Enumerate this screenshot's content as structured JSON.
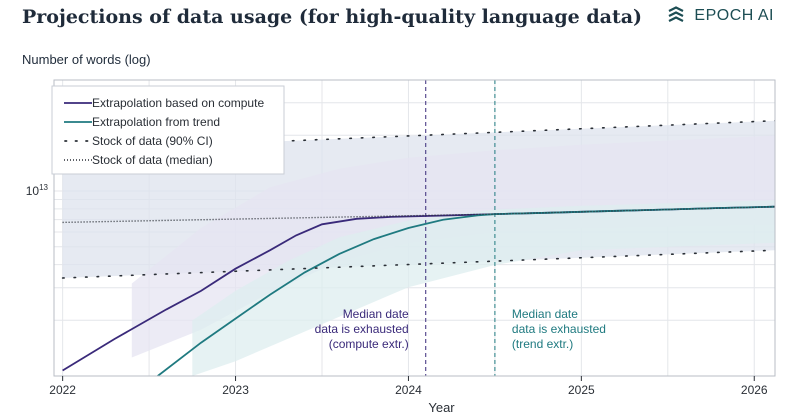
{
  "header": {
    "title": "Projections of data usage (for high-quality language data)",
    "brand": "EPOCH AI",
    "y_axis_label": "Number of words (log)"
  },
  "colors": {
    "compute": "#3a2a7a",
    "trend": "#1f7a80",
    "stock": "#2a2f36",
    "band_stock": "#dde3ed",
    "band_compute": "#e6e4f2",
    "band_trend": "#ddeeef",
    "grid": "#e4e6ea",
    "brand": "#1d4e54"
  },
  "chart_data": {
    "type": "line",
    "title": "Projections of data usage (for high-quality language data)",
    "xlabel": "Year",
    "ylabel": "Number of words (log)",
    "xlim": [
      2021.95,
      2026.12
    ],
    "ylim": [
      12.0,
      13.6
    ],
    "x_ticks": [
      2022,
      2023,
      2024,
      2025,
      2026
    ],
    "x_tick_labels": [
      "2022",
      "2023",
      "2024",
      "2025",
      "2026"
    ],
    "y_tick_label": {
      "value": 13.0,
      "base": "10",
      "exponent": "13"
    },
    "grid": true,
    "legend_position": "top-left",
    "legend": [
      {
        "key": "compute",
        "label": "Extrapolation based on compute",
        "style": "solid"
      },
      {
        "key": "trend",
        "label": "Extrapolation from trend",
        "style": "solid"
      },
      {
        "key": "stock_ci",
        "label": "Stock of data (90% CI)",
        "style": "sparse-dotted"
      },
      {
        "key": "stock_median",
        "label": "Stock of data (median)",
        "style": "dense-dotted"
      }
    ],
    "series": [
      {
        "name": "Extrapolation based on compute",
        "key": "compute",
        "x": [
          2022.0,
          2022.3,
          2022.6,
          2022.8,
          2023.0,
          2023.2,
          2023.35,
          2023.5,
          2023.7,
          2023.9,
          2024.1,
          2024.3,
          2024.5,
          2024.8,
          2025.1,
          2025.5,
          2025.8,
          2026.12
        ],
        "y": [
          12.03,
          12.2,
          12.36,
          12.46,
          12.58,
          12.68,
          12.76,
          12.82,
          12.85,
          12.86,
          12.865,
          12.87,
          12.875,
          12.882,
          12.89,
          12.9,
          12.908,
          12.915
        ]
      },
      {
        "name": "Extrapolation from trend",
        "key": "trend",
        "x": [
          2022.55,
          2022.8,
          2023.0,
          2023.2,
          2023.4,
          2023.6,
          2023.8,
          2024.0,
          2024.2,
          2024.4,
          2024.5,
          2024.8,
          2025.1,
          2025.5,
          2025.8,
          2026.12
        ],
        "y": [
          12.0,
          12.18,
          12.31,
          12.44,
          12.56,
          12.66,
          12.74,
          12.8,
          12.845,
          12.868,
          12.875,
          12.882,
          12.89,
          12.9,
          12.908,
          12.915
        ]
      },
      {
        "name": "Stock of data (median)",
        "key": "stock_median",
        "x": [
          2022.0,
          2024.5,
          2026.12
        ],
        "y": [
          12.83,
          12.875,
          12.915
        ]
      },
      {
        "name": "Stock of data (90% CI) upper",
        "key": "stock_ci",
        "x": [
          2022.0,
          2026.12
        ],
        "y": [
          13.22,
          13.38
        ]
      },
      {
        "name": "Stock of data (90% CI) lower",
        "key": "stock_ci",
        "x": [
          2022.0,
          2026.12
        ],
        "y": [
          12.53,
          12.68
        ]
      }
    ],
    "bands": [
      {
        "name": "stock_ci",
        "x": [
          2022.0,
          2026.12
        ],
        "lower": [
          12.53,
          12.68
        ],
        "upper": [
          13.22,
          13.38
        ]
      },
      {
        "name": "compute_ci",
        "x": [
          2022.4,
          2022.8,
          2023.2,
          2023.6,
          2024.0,
          2024.5,
          2025.0,
          2026.12
        ],
        "lower": [
          12.1,
          12.25,
          12.45,
          12.62,
          12.72,
          12.78,
          12.8,
          12.82
        ],
        "upper": [
          12.5,
          12.8,
          13.02,
          13.12,
          13.18,
          13.22,
          13.25,
          13.3
        ]
      },
      {
        "name": "trend_ci",
        "x": [
          2022.75,
          2023.0,
          2023.3,
          2023.6,
          2024.0,
          2024.5,
          2025.0,
          2026.12
        ],
        "lower": [
          12.0,
          12.08,
          12.2,
          12.32,
          12.48,
          12.6,
          12.68,
          12.72
        ],
        "upper": [
          12.3,
          12.46,
          12.62,
          12.75,
          12.84,
          12.9,
          12.92,
          12.95
        ]
      }
    ],
    "annotations": [
      {
        "key": "compute",
        "x": 2024.1,
        "lines": [
          "Median date",
          "data is exhausted",
          "(compute extr.)"
        ]
      },
      {
        "key": "trend",
        "x": 2024.5,
        "lines": [
          "Median date",
          "data is exhausted",
          "(trend extr.)"
        ]
      }
    ]
  }
}
